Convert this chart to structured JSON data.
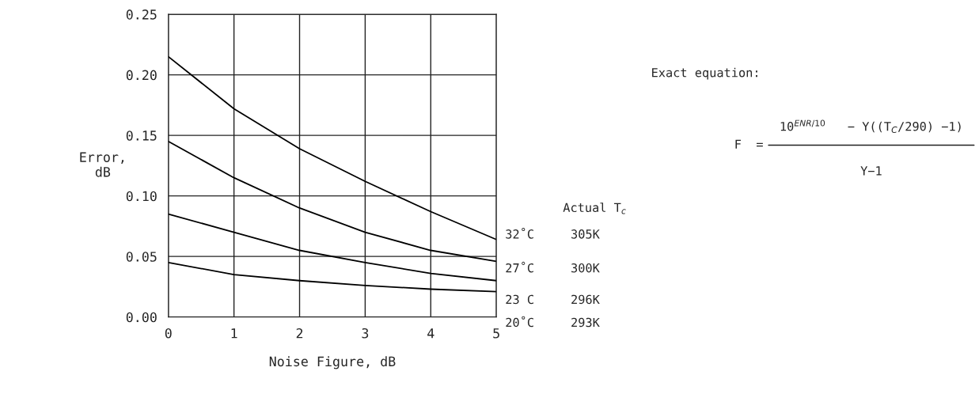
{
  "chart_data": {
    "type": "line",
    "xlabel": "Noise Figure, dB",
    "ylabel": "Error,\ndB",
    "x": [
      0,
      1,
      2,
      3,
      4,
      5
    ],
    "series": [
      {
        "name": "32˚C     305K",
        "color": "#000000",
        "values": [
          0.215,
          0.172,
          0.139,
          0.112,
          0.087,
          0.064
        ]
      },
      {
        "name": "27˚C     300K",
        "color": "#000000",
        "values": [
          0.145,
          0.115,
          0.09,
          0.07,
          0.055,
          0.046
        ]
      },
      {
        "name": "23 C     296K",
        "color": "#000000",
        "values": [
          0.085,
          0.07,
          0.055,
          0.045,
          0.036,
          0.03
        ]
      },
      {
        "name": "20˚C     293K",
        "color": "#000000",
        "values": [
          0.045,
          0.035,
          0.03,
          0.026,
          0.023,
          0.021
        ]
      }
    ],
    "xlim": [
      0,
      5
    ],
    "ylim": [
      0,
      0.25
    ],
    "xticks": [
      0,
      1,
      2,
      3,
      4,
      5
    ],
    "yticks": [
      {
        "value": 0,
        "label": "0.00"
      },
      {
        "value": 0.05,
        "label": "0.05"
      },
      {
        "value": 0.1,
        "label": "0.10"
      },
      {
        "value": 0.15,
        "label": "0.15"
      },
      {
        "value": 0.2,
        "label": "0.20"
      },
      {
        "value": 0.25,
        "label": "0.25"
      }
    ],
    "grid": true,
    "legend": false,
    "marker": "none",
    "line_style": "solid",
    "annotations": [
      "Exact equation:",
      "F  =",
      "10$^{ENR/10}$   − Y((T$_{C}$/290) −1)",
      "Y−1",
      "Actual T$_{c}$"
    ]
  }
}
